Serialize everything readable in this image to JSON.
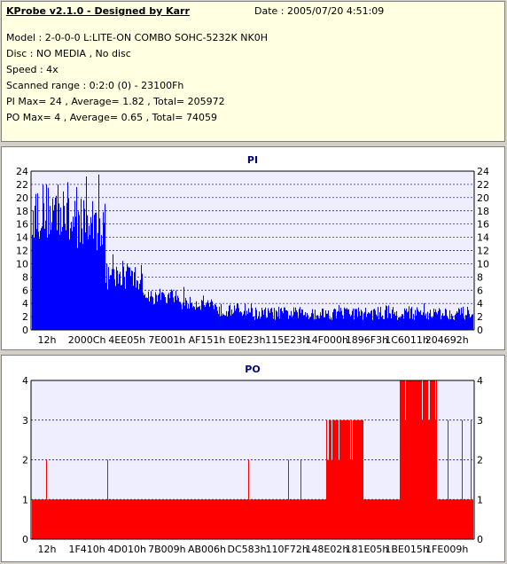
{
  "header": {
    "title": "KProbe v2.1.0 - Designed by Karr",
    "date": "Date : 2005/07/20 4:51:09",
    "model": "Model : 2-0-0-0 L:LITE-ON COMBO SOHC-5232K NK0H",
    "disc": "Disc : NO MEDIA , No disc",
    "speed": "Speed : 4x",
    "range": "Scanned range : 0:2:0 (0) - 23100Fh",
    "pi_stats": "PI Max= 24 , Average= 1.82 , Total= 205972",
    "po_stats": "PO Max= 4 , Average= 0.65 , Total= 74059"
  },
  "chart_data": [
    {
      "type": "bar",
      "title": "PI",
      "color": "#0000ff",
      "xlabel": "",
      "ylabel": "",
      "ylim": [
        0,
        24
      ],
      "yticks": [
        0,
        2,
        4,
        6,
        8,
        10,
        12,
        14,
        16,
        18,
        20,
        22,
        24
      ],
      "xticks": [
        "12h",
        "2000Ch",
        "4EE05h",
        "7E001h",
        "AF151h",
        "E0E23h",
        "115E23h",
        "14F000h",
        "1896F3h",
        "1C6011h",
        "204692h"
      ],
      "x_segments": [
        "start",
        "12h-2000Ch",
        "2000Ch-4EE05h",
        "4EE05h-7E001h",
        "7E001h-AF151h",
        "AF151h-E0E23h",
        "E0E23h-115E23h",
        "115E23h-14F000h",
        "14F000h-1896F3h",
        "1896F3h-1C6011h",
        "1C6011h-204692h",
        "end"
      ],
      "segment_levels": [
        18,
        16,
        8,
        5,
        4,
        3,
        2.5,
        2.5,
        2.5,
        2.5,
        2.5,
        2.5
      ],
      "segment_peaks": [
        22,
        24,
        12,
        6,
        7,
        5,
        4,
        4,
        4,
        5,
        6,
        5
      ],
      "grid": true,
      "avg": 1.82,
      "max": 24
    },
    {
      "type": "bar",
      "title": "PO",
      "color": "#ff0000",
      "xlabel": "",
      "ylabel": "",
      "ylim": [
        0,
        4
      ],
      "yticks": [
        0,
        1,
        2,
        3,
        4
      ],
      "xticks": [
        "12h",
        "1F410h",
        "4D010h",
        "7B009h",
        "AB006h",
        "DC583h",
        "110F72h",
        "148E02h",
        "181E05h",
        "1BE015h",
        "1FE009h"
      ],
      "x_segments": [
        "start",
        "12h-1F410h",
        "1F410h-4D010h",
        "4D010h-7B009h",
        "7B009h-AB006h",
        "AB006h-DC583h",
        "DC583h-110F72h",
        "110F72h-148E02h",
        "148E02h-181E05h",
        "181E05h-1BE015h",
        "1BE015h-1FE009h",
        "end"
      ],
      "segment_levels": [
        1,
        1,
        1,
        1,
        1,
        1,
        1,
        1,
        3,
        1,
        4,
        1
      ],
      "segment_peaks": [
        2,
        2,
        2,
        2,
        3,
        3,
        2,
        2,
        4,
        3,
        4,
        3
      ],
      "grid": true,
      "avg": 0.65,
      "max": 4
    }
  ]
}
